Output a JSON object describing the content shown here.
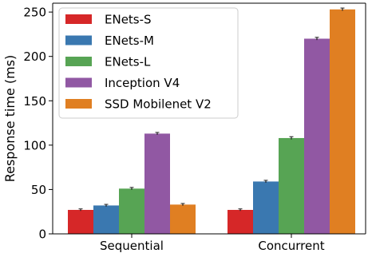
{
  "chart_data": {
    "type": "bar",
    "title": "",
    "xlabel": "",
    "ylabel": "Response time (ms)",
    "categories": [
      "Sequential",
      "Concurrent"
    ],
    "ylim": [
      0,
      260
    ],
    "yticks": [
      0,
      50,
      100,
      150,
      200,
      250
    ],
    "grid": false,
    "legend_position": "top-left",
    "error_bars": true,
    "series": [
      {
        "name": "ENets-S",
        "color": "#d62728",
        "values": [
          27,
          27
        ],
        "errors": [
          0.6,
          0.6
        ]
      },
      {
        "name": "ENets-M",
        "color": "#3a78b0",
        "values": [
          32,
          59
        ],
        "errors": [
          0.7,
          0.8
        ]
      },
      {
        "name": "ENets-L",
        "color": "#57a454",
        "values": [
          51,
          108
        ],
        "errors": [
          0.8,
          1.0
        ]
      },
      {
        "name": "Inception V4",
        "color": "#9158a3",
        "values": [
          113,
          220
        ],
        "errors": [
          0.8,
          1.0
        ]
      },
      {
        "name": "SSD Mobilenet V2",
        "color": "#e07f22",
        "values": [
          33,
          253
        ],
        "errors": [
          0.7,
          1.0
        ]
      }
    ]
  }
}
